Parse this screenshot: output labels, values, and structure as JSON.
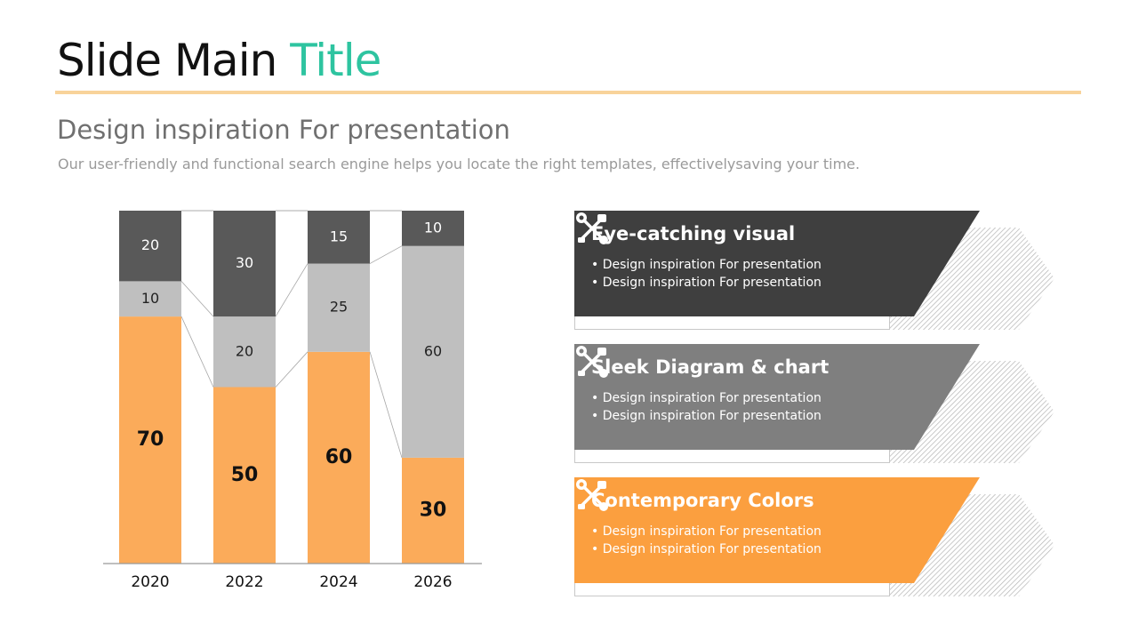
{
  "title": {
    "main": "Slide Main",
    "accent": "Title"
  },
  "subtitle": "Design inspiration For presentation",
  "description": "Our user-friendly and functional search engine helps you locate the right templates, effectivelysaving your time.",
  "colors": {
    "accent": "#2ec4a0",
    "rule": "#f8d39a",
    "orange": "#fbab5a",
    "light_gray": "#bfbfbf",
    "dark_gray": "#595959"
  },
  "chart_data": {
    "type": "bar",
    "stacked": true,
    "categories": [
      "2020",
      "2022",
      "2024",
      "2026"
    ],
    "series": [
      {
        "values": [
          70,
          50,
          60,
          30
        ],
        "color": "#fbab5a"
      },
      {
        "values": [
          10,
          20,
          25,
          60
        ],
        "color": "#bfbfbf"
      },
      {
        "values": [
          20,
          30,
          15,
          10
        ],
        "color": "#595959"
      }
    ],
    "ylim": [
      0,
      100
    ],
    "xlabel": "",
    "ylabel": ""
  },
  "cards": [
    {
      "title": "Eye-catching visual",
      "bullets": [
        "Design inspiration For presentation",
        "Design inspiration For presentation"
      ],
      "color": "#3f3f3f",
      "icon": "tools-icon"
    },
    {
      "title": "Sleek Diagram & chart",
      "bullets": [
        "Design inspiration For presentation",
        "Design inspiration For presentation"
      ],
      "color": "#7f7f7f",
      "icon": "tools-icon"
    },
    {
      "title": "Contemporary Colors",
      "bullets": [
        "Design inspiration For presentation",
        "Design inspiration For presentation"
      ],
      "color": "#fb9f3f",
      "icon": "tools-icon"
    }
  ]
}
